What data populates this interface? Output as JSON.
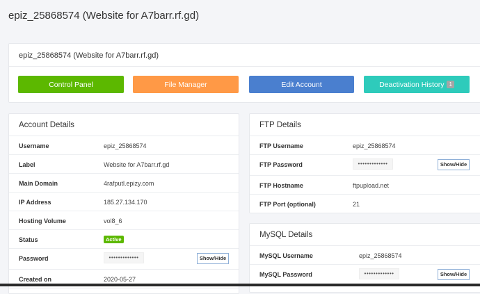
{
  "page_title": "epiz_25868574 (Website for A7barr.rf.gd)",
  "account_card": {
    "title": "epiz_25868574 (Website for A7barr.rf.gd)",
    "buttons": [
      {
        "label": "Control Panel",
        "color": "#5cb800"
      },
      {
        "label": "File Manager",
        "color": "#ff9946"
      },
      {
        "label": "Edit Account",
        "color": "#4a7fcf"
      },
      {
        "label": "Deactivation History",
        "color": "#2ecbbb",
        "badge": "1"
      }
    ]
  },
  "account_details": {
    "title": "Account Details",
    "username_label": "Username",
    "username": "epiz_25868574",
    "label_label": "Label",
    "label": "Website for A7barr.rf.gd",
    "domain_label": "Main Domain",
    "domain": "4rafputl.epizy.com",
    "ip_label": "IP Address",
    "ip": "185.27.134.170",
    "volume_label": "Hosting Volume",
    "volume": "vol8_6",
    "status_label": "Status",
    "status": "Active",
    "password_label": "Password",
    "password": "•••••••••••••",
    "show_hide": "Show/Hide",
    "created_label": "Created on",
    "created": "2020-05-27"
  },
  "ftp_details": {
    "title": "FTP Details",
    "username_label": "FTP Username",
    "username": "epiz_25868574",
    "password_label": "FTP Password",
    "password": "•••••••••••••",
    "show_hide": "Show/Hide",
    "host_label": "FTP Hostname",
    "host": "ftpupload.net",
    "port_label": "FTP Port (optional)",
    "port": "21"
  },
  "mysql_details": {
    "title": "MySQL Details",
    "username_label": "MySQL Username",
    "username": "epiz_25868574",
    "password_label": "MySQL Password",
    "password": "•••••••••••••",
    "show_hide": "Show/Hide"
  }
}
